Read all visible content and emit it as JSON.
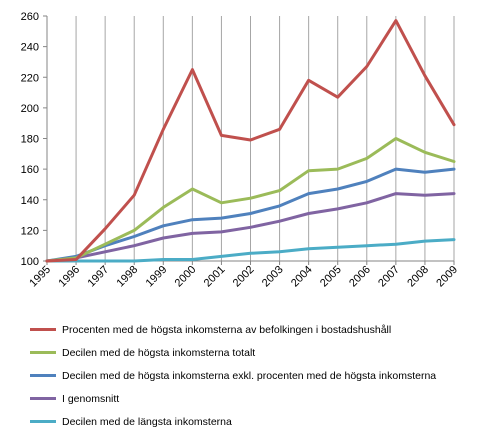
{
  "chart_data": {
    "type": "line",
    "x": [
      "1995",
      "1996",
      "1997",
      "1998",
      "1999",
      "2000",
      "2001",
      "2002",
      "2003",
      "2004",
      "2005",
      "2006",
      "2007",
      "2008",
      "2009"
    ],
    "ylim": [
      100,
      260
    ],
    "yticks": [
      100,
      120,
      140,
      160,
      180,
      200,
      220,
      240,
      260
    ],
    "grid": "vertical",
    "legend_position": "bottom",
    "series": [
      {
        "name": "Procenten med de högsta inkomsterna av befolkingen i bostadshushåll",
        "color": "#c0504d",
        "values": [
          100,
          101,
          121,
          143,
          186,
          225,
          182,
          179,
          186,
          218,
          207,
          227,
          257,
          221,
          189
        ]
      },
      {
        "name": "Decilen med de högsta inkomsterna totalt",
        "color": "#9bbb59",
        "values": [
          100,
          102,
          111,
          120,
          135,
          147,
          138,
          141,
          146,
          159,
          160,
          167,
          180,
          171,
          165
        ]
      },
      {
        "name": "Decilen med de högsta inkomsterna exkl. procenten med de högsta inkomsterna",
        "color": "#4f81bd",
        "values": [
          100,
          103,
          110,
          116,
          123,
          127,
          128,
          131,
          136,
          144,
          147,
          152,
          160,
          158,
          160
        ]
      },
      {
        "name": "I genomsnitt",
        "color": "#8064a2",
        "values": [
          100,
          102,
          106,
          110,
          115,
          118,
          119,
          122,
          126,
          131,
          134,
          138,
          144,
          143,
          144
        ]
      },
      {
        "name": "Decilen med de längsta inkomsterna",
        "color": "#4bacc6",
        "values": [
          100,
          100,
          100,
          100,
          101,
          101,
          103,
          105,
          106,
          108,
          109,
          110,
          111,
          113,
          114
        ]
      }
    ]
  }
}
